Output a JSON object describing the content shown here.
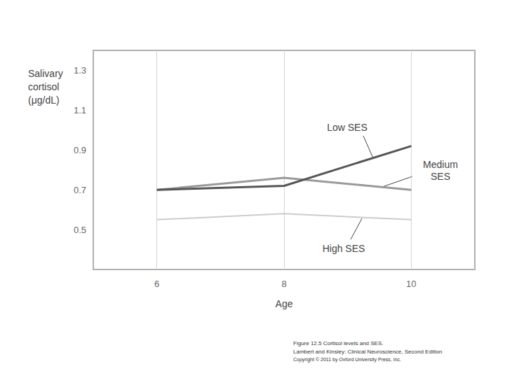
{
  "chart_data": {
    "type": "line",
    "y_label": "Salivary cortisol (μg/dL)",
    "x_label": "Age",
    "x": [
      6,
      8,
      10
    ],
    "series": [
      {
        "name": "Low SES",
        "color": "#555555",
        "values": [
          0.7,
          0.72,
          0.92
        ]
      },
      {
        "name": "Medium SES",
        "color": "#999999",
        "values": [
          0.7,
          0.76,
          0.7
        ]
      },
      {
        "name": "High SES",
        "color": "#cccccc",
        "values": [
          0.55,
          0.58,
          0.55
        ]
      }
    ],
    "xlim": [
      5,
      11
    ],
    "xticks": [
      6,
      8,
      10
    ],
    "ylim": [
      0.3,
      1.4
    ],
    "yticks": [
      0.5,
      0.7,
      0.9,
      1.1,
      1.3
    ],
    "grid": true,
    "caption": [
      "Figure 12.5 Cortisol levels and SES.",
      "Lambert and Kinsley: Clinical Neuroscience, Second Edition",
      "Copyright © 2011 by Oxford University Press, Inc."
    ]
  }
}
